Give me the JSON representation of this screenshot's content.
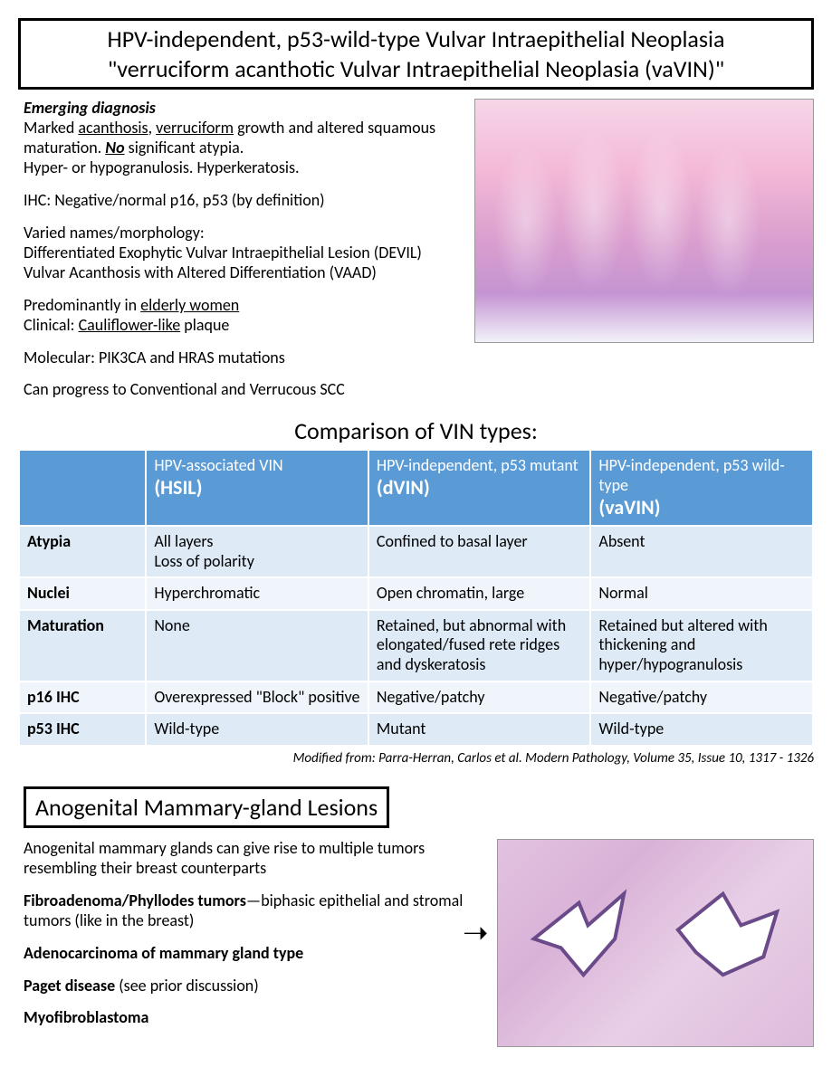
{
  "section1": {
    "title_line1": "HPV-independent, p53-wild-type Vulvar Intraepithelial Neoplasia",
    "title_line2": "\"verruciform acanthotic Vulvar Intraepithelial Neoplasia (vaVIN)\"",
    "diagnosis_heading": "Emerging diagnosis",
    "p1_a": "Marked ",
    "p1_u1": "acanthosis",
    "p1_b": ", ",
    "p1_u2": "verruciform",
    "p1_c": " growth and altered squamous maturation. ",
    "p1_no": "No",
    "p1_d": " significant atypia.",
    "p1_line3": "Hyper- or hypogranulosis. Hyperkeratosis.",
    "p2": "IHC: Negative/normal p16, p53 (by definition)",
    "p3_a": "Varied names/morphology:",
    "p3_b": "Differentiated Exophytic Vulvar Intraepithelial Lesion (DEVIL)",
    "p3_c": "Vulvar Acanthosis with Altered Differentiation (VAAD)",
    "p4_a": "Predominantly in ",
    "p4_u": "elderly women",
    "p4_b": "Clinical: ",
    "p4_u2": "Cauliflower-like",
    "p4_c": " plaque",
    "p5": "Molecular: PIK3CA and HRAS mutations",
    "p6": "Can progress to Conventional and Verrucous SCC"
  },
  "comparison": {
    "title": "Comparison of VIN types:",
    "header_colors": {
      "bg": "#5b9bd5",
      "fg": "#ffffff"
    },
    "row_colors": {
      "odd": "#deebf7",
      "even": "#eff5fb"
    },
    "columns": [
      {
        "line1": "HPV-associated VIN",
        "abbr": "(HSIL)"
      },
      {
        "line1": "HPV-independent, p53 mutant",
        "abbr": "(dVIN)"
      },
      {
        "line1": "HPV-independent, p53 wild-type",
        "abbr": "(vaVIN)"
      }
    ],
    "rows": [
      {
        "label": "Atypia",
        "cells": [
          "All layers\nLoss of polarity",
          "Confined to basal layer",
          "Absent"
        ]
      },
      {
        "label": "Nuclei",
        "cells": [
          "Hyperchromatic",
          "Open chromatin, large",
          "Normal"
        ]
      },
      {
        "label": "Maturation",
        "cells": [
          "None",
          "Retained, but abnormal with elongated/fused rete ridges and dyskeratosis",
          "Retained but altered with thickening and hyper/hypogranulosis"
        ]
      },
      {
        "label": "p16 IHC",
        "cells": [
          "Overexpressed \"Block\" positive",
          "Negative/patchy",
          "Negative/patchy"
        ]
      },
      {
        "label": "p53 IHC",
        "cells": [
          "Wild-type",
          "Mutant",
          "Wild-type"
        ]
      }
    ],
    "citation": "Modified from: Parra-Herran, Carlos et al. Modern Pathology, Volume 35, Issue 10, 1317 - 1326"
  },
  "section2": {
    "title": "Anogenital Mammary-gland Lesions",
    "intro": "Anogenital mammary glands can give rise to multiple tumors resembling their breast counterparts",
    "item1_bold": "Fibroadenoma/Phyllodes tumors",
    "item1_rest": "—biphasic epithelial and stromal tumors (like in the breast)",
    "item2": "Adenocarcinoma of mammary gland type",
    "item3_bold": "Paget disease",
    "item3_rest": " (see prior discussion)",
    "item4": "Myofibroblastoma"
  }
}
